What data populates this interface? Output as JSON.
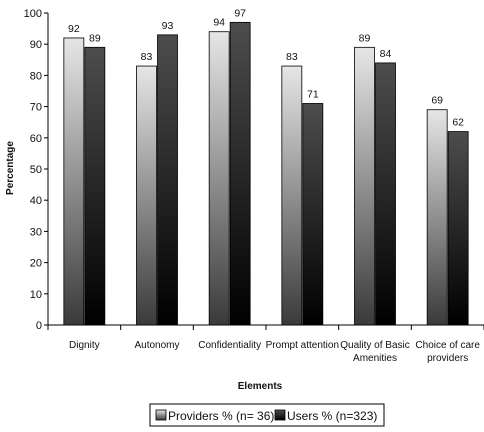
{
  "chart_data": {
    "type": "bar",
    "title": "",
    "xlabel": "Elements",
    "ylabel": "Percentage",
    "ylim": [
      0,
      100
    ],
    "yticks": [
      0,
      10,
      20,
      30,
      40,
      50,
      60,
      70,
      80,
      90,
      100
    ],
    "categories": [
      [
        "Dignity"
      ],
      [
        "Autonomy"
      ],
      [
        "Confidentiality"
      ],
      [
        "Prompt attention"
      ],
      [
        "Quality of Basic",
        "Amenities"
      ],
      [
        "Choice of care",
        "providers"
      ]
    ],
    "series": [
      {
        "name": "Providers % (n= 36)",
        "values": [
          92,
          83,
          94,
          83,
          89,
          69
        ]
      },
      {
        "name": "Users % (n=323)",
        "values": [
          89,
          93,
          97,
          71,
          84,
          62
        ]
      }
    ],
    "grid": false,
    "legend": "bottom-center",
    "colors": {
      "providers_top": "#e6e6e6",
      "providers_bottom": "#3a3a3a",
      "users_top": "#4d4d4d",
      "users_bottom": "#000000"
    }
  }
}
